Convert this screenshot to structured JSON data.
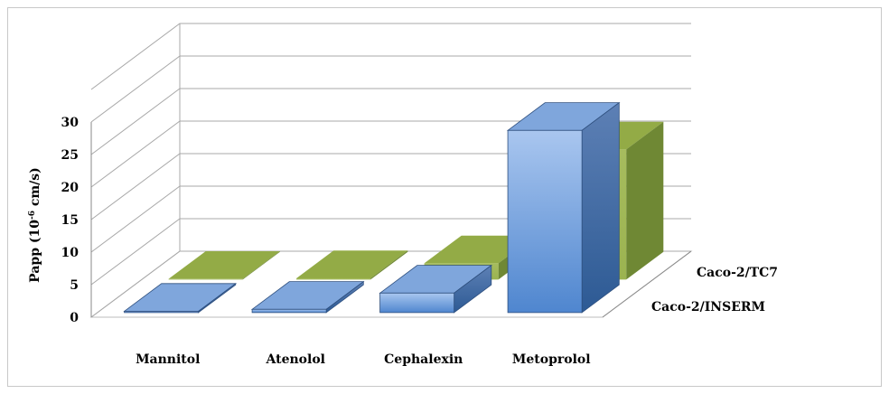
{
  "chart_data": {
    "type": "bar",
    "style": "3d-clustered-column",
    "title": "",
    "xlabel": "",
    "ylabel": "Papp (10-6 cm/s)",
    "ylabel_parts": {
      "base": "Papp (10",
      "exponent": "-6",
      "unit": " cm/s)"
    },
    "ylim": [
      0,
      30
    ],
    "yticks": [
      0,
      5,
      10,
      15,
      20,
      25,
      30
    ],
    "grid": true,
    "categories": [
      "Mannitol",
      "Atenolol",
      "Cephalexin",
      "Metoprolol"
    ],
    "series": [
      {
        "name": "Caco-2/INSERM",
        "values": [
          0.2,
          0.5,
          3.0,
          28.0
        ],
        "color": "#7fa6dc"
      },
      {
        "name": "Caco-2/TC7",
        "values": [
          0.1,
          0.2,
          2.5,
          20.0
        ],
        "color": "#a4bb5c"
      }
    ],
    "legend": "depth-axis-right"
  }
}
